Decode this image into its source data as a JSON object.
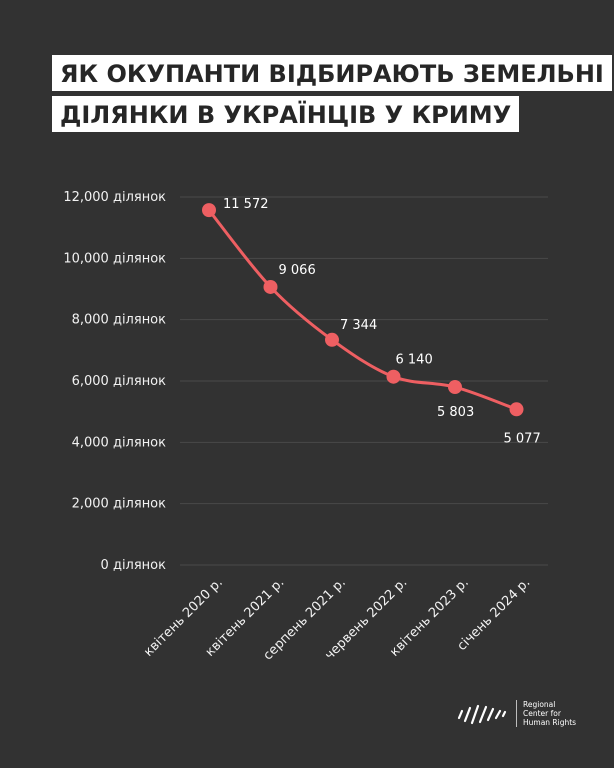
{
  "title": {
    "line1": "ЯК ОКУПАНТИ ВІДБИРАЮТЬ ЗЕМЕЛЬНІ",
    "line2": "ДІЛЯНКИ В УКРАЇНЦІВ У КРИМУ"
  },
  "logo": {
    "icon": "rchr-logo-icon",
    "lines": [
      "Regional",
      "Center for",
      "Human Rights"
    ]
  },
  "colors": {
    "background": "#323232",
    "line": "#ee5f62",
    "grid": "#4a4a4a"
  },
  "chart_data": {
    "type": "line",
    "categories": [
      "квітень 2020 р.",
      "квітень 2021 р.",
      "серпень 2021 р.",
      "червень 2022 р.",
      "квітень 2023 р.",
      "січень 2024 р."
    ],
    "values": [
      11572,
      9066,
      7344,
      6140,
      5803,
      5077
    ],
    "data_labels": [
      "11 572",
      "9 066",
      "7 344",
      "6 140",
      "5 803",
      "5 077"
    ],
    "ylim": [
      0,
      12000
    ],
    "yticks": [
      0,
      2000,
      4000,
      6000,
      8000,
      10000,
      12000
    ],
    "ytick_labels": [
      "0 ділянок",
      "2,000 ділянок",
      "4,000 ділянок",
      "6,000 ділянок",
      "8,000 ділянок",
      "10,000 ділянок",
      "12,000 ділянок"
    ],
    "grid": true,
    "xlabel": "",
    "ylabel": ""
  }
}
